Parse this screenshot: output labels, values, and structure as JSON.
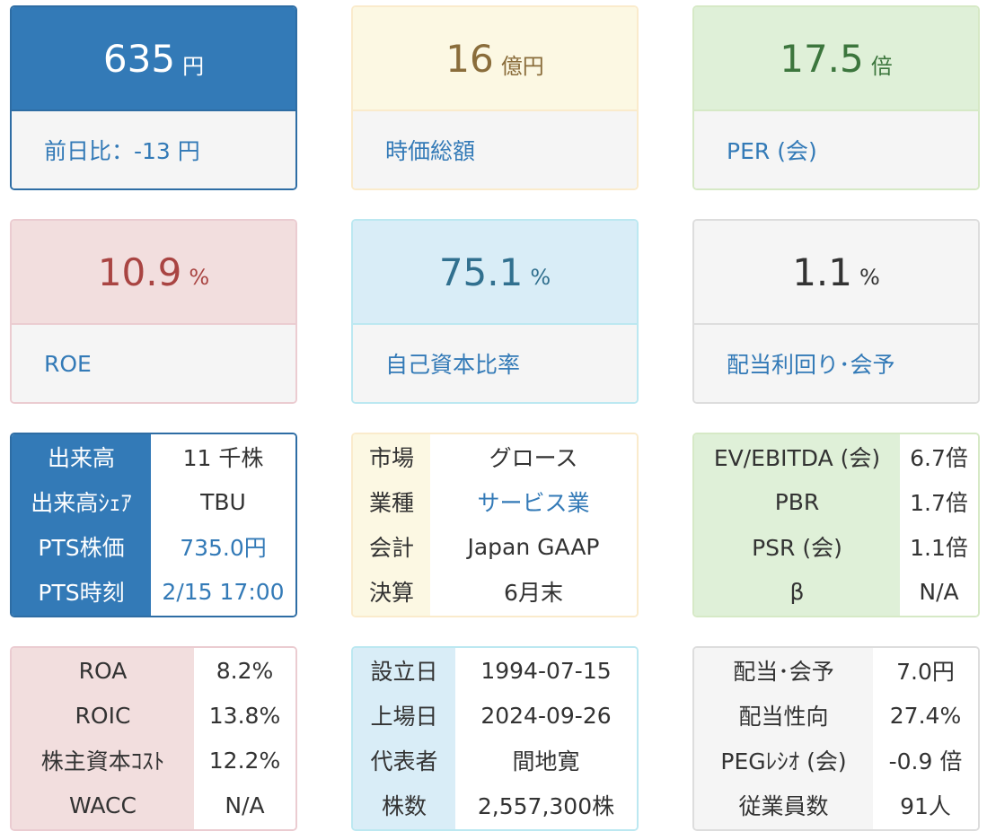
{
  "metric_cards": {
    "price": {
      "value": "635",
      "unit": "円",
      "label": "前日比：-13 円"
    },
    "market_cap": {
      "value": "16",
      "unit": "億円",
      "label": "時価総額"
    },
    "per": {
      "value": "17.5",
      "unit": "倍",
      "label": "PER (会)"
    },
    "roe": {
      "value": "10.9",
      "unit": "%",
      "label": "ROE"
    },
    "equity_ratio": {
      "value": "75.1",
      "unit": "%",
      "label": "自己資本比率"
    },
    "dividend_yield": {
      "value": "1.1",
      "unit": "%",
      "label": "配当利回り･会予"
    }
  },
  "trading": [
    {
      "label": "出来高",
      "value": "11 千株"
    },
    {
      "label": "出来高ｼｪｱ",
      "value": "TBU"
    },
    {
      "label": "PTS株価",
      "value": "735.0円"
    },
    {
      "label": "PTS時刻",
      "value": "2/15 17:00"
    }
  ],
  "profile": [
    {
      "label": "市場",
      "value": "グロース"
    },
    {
      "label": "業種",
      "value": "サービス業"
    },
    {
      "label": "会計",
      "value": "Japan GAAP"
    },
    {
      "label": "決算",
      "value": "6月末"
    }
  ],
  "valuation": [
    {
      "label": "EV/EBITDA (会)",
      "value": "6.7倍"
    },
    {
      "label": "PBR",
      "value": "1.7倍"
    },
    {
      "label": "PSR (会)",
      "value": "1.1倍"
    },
    {
      "label": "β",
      "value": "N/A"
    }
  ],
  "returns": [
    {
      "label": "ROA",
      "value": "8.2%"
    },
    {
      "label": "ROIC",
      "value": "13.8%"
    },
    {
      "label": "株主資本ｺｽﾄ",
      "value": "12.2%"
    },
    {
      "label": "WACC",
      "value": "N/A"
    }
  ],
  "company": [
    {
      "label": "設立日",
      "value": "1994-07-15"
    },
    {
      "label": "上場日",
      "value": "2024-09-26"
    },
    {
      "label": "代表者",
      "value": "間地寛"
    },
    {
      "label": "株数",
      "value": "2,557,300株"
    }
  ],
  "dividend": [
    {
      "label": "配当･会予",
      "value": "7.0円"
    },
    {
      "label": "配当性向",
      "value": "27.4%"
    },
    {
      "label": "PEGﾚｼｵ (会)",
      "value": "-0.9 倍"
    },
    {
      "label": "従業員数",
      "value": "91人"
    }
  ],
  "colors": {
    "primary": "#337ab7",
    "warning_bg": "#fcf8e3",
    "success_bg": "#dff0d8",
    "danger_bg": "#f2dede",
    "info_bg": "#d9edf7",
    "neutral_bg": "#f5f5f5"
  }
}
